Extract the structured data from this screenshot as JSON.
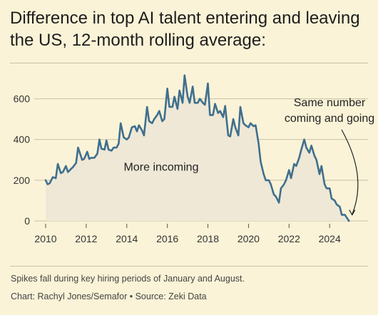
{
  "title": "Difference in top AI talent entering and leaving the US, 12-month rolling average:",
  "footer": {
    "note": "Spikes fall during key hiring periods of January and August.",
    "credit": "Chart: Rachyl Jones/Semafor • Source: Zeki Data"
  },
  "colors": {
    "background": "#fbf3d7",
    "line": "#3f6f8e",
    "area_fill": "#efe8d6",
    "grid": "#c9c1a5"
  },
  "chart_data": {
    "type": "area",
    "title": "Difference in top AI talent entering and leaving the US, 12-month rolling average:",
    "xlabel": "",
    "ylabel": "",
    "xlim": [
      2010,
      2025.6
    ],
    "ylim": [
      0,
      700
    ],
    "yticks": [
      0,
      200,
      400,
      600
    ],
    "xticks": [
      2010,
      2012,
      2014,
      2016,
      2018,
      2020,
      2022,
      2024
    ],
    "grid": true,
    "annotations": [
      {
        "text": "More incoming",
        "x": 2016.4,
        "y": 265
      },
      {
        "text": "Same number\ncoming and going",
        "x": 2024.4,
        "y": 610,
        "arrow_to": [
          2024.9,
          5
        ]
      }
    ],
    "series": [
      {
        "x": [
          2010.0,
          2010.1,
          2010.2,
          2010.35,
          2010.5,
          2010.6,
          2010.75,
          2010.85,
          2011.0,
          2011.1,
          2011.25,
          2011.35,
          2011.5,
          2011.6,
          2011.8,
          2011.9,
          2012.05,
          2012.15,
          2012.25,
          2012.4,
          2012.55,
          2012.65,
          2012.75,
          2012.9,
          2013.0,
          2013.1,
          2013.25,
          2013.35,
          2013.5,
          2013.6,
          2013.7,
          2013.85,
          2014.0,
          2014.1,
          2014.25,
          2014.4,
          2014.5,
          2014.6,
          2014.75,
          2014.85,
          2015.0,
          2015.1,
          2015.25,
          2015.35,
          2015.5,
          2015.6,
          2015.75,
          2015.85,
          2016.0,
          2016.1,
          2016.25,
          2016.35,
          2016.5,
          2016.6,
          2016.75,
          2016.85,
          2017.0,
          2017.1,
          2017.25,
          2017.35,
          2017.5,
          2017.6,
          2017.75,
          2017.85,
          2018.0,
          2018.1,
          2018.25,
          2018.35,
          2018.5,
          2018.6,
          2018.75,
          2018.85,
          2019.0,
          2019.1,
          2019.25,
          2019.35,
          2019.5,
          2019.6,
          2019.75,
          2019.85,
          2020.0,
          2020.1,
          2020.25,
          2020.35,
          2020.5,
          2020.6,
          2020.75,
          2020.85,
          2021.0,
          2021.1,
          2021.25,
          2021.35,
          2021.5,
          2021.6,
          2021.75,
          2021.85,
          2022.0,
          2022.1,
          2022.25,
          2022.35,
          2022.5,
          2022.6,
          2022.75,
          2022.85,
          2023.0,
          2023.1,
          2023.25,
          2023.35,
          2023.5,
          2023.6,
          2023.75,
          2023.85,
          2024.0,
          2024.1,
          2024.25,
          2024.35,
          2024.5,
          2024.6,
          2024.75,
          2024.85,
          2024.95
        ],
        "values": [
          200,
          180,
          185,
          215,
          210,
          280,
          235,
          240,
          270,
          240,
          255,
          265,
          285,
          360,
          300,
          305,
          340,
          305,
          310,
          310,
          330,
          400,
          355,
          350,
          395,
          350,
          345,
          360,
          360,
          380,
          480,
          410,
          400,
          410,
          460,
          465,
          440,
          470,
          445,
          420,
          560,
          490,
          480,
          500,
          520,
          540,
          490,
          500,
          650,
          560,
          560,
          610,
          550,
          640,
          580,
          715,
          610,
          580,
          660,
          580,
          580,
          600,
          580,
          570,
          675,
          520,
          520,
          575,
          530,
          540,
          510,
          565,
          420,
          415,
          500,
          460,
          420,
          560,
          480,
          470,
          460,
          480,
          465,
          470,
          380,
          290,
          230,
          200,
          200,
          180,
          130,
          120,
          90,
          160,
          180,
          200,
          250,
          210,
          280,
          270,
          310,
          350,
          400,
          360,
          335,
          370,
          320,
          300,
          230,
          270,
          180,
          160,
          160,
          110,
          100,
          80,
          70,
          30,
          30,
          15,
          0
        ]
      }
    ]
  }
}
